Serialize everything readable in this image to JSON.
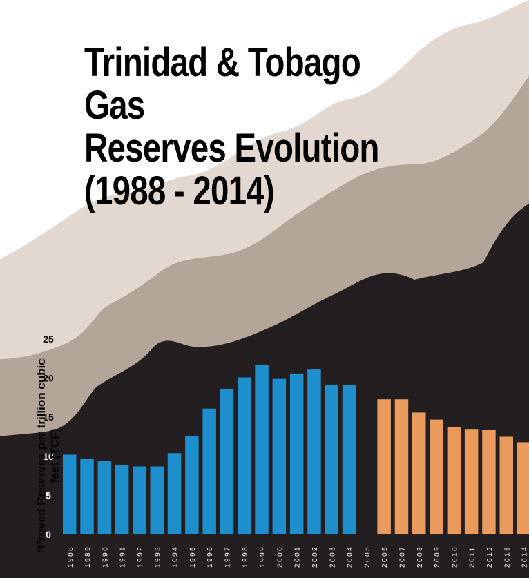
{
  "title_lines": [
    "Trinidad & Tobago Gas",
    "Reserves Evolution",
    "(1988 - 2014)"
  ],
  "colors": {
    "background": "#ffffff",
    "wave_light": "#e2d8d0",
    "wave_mid": "#b3a598",
    "wave_dark": "#231f20",
    "bar_blue": "#1e8fcc",
    "bar_orange": "#e89b5c",
    "text_dark": "#000000",
    "text_light": "#ffffff"
  },
  "chart_data": {
    "type": "bar",
    "title": "Trinidad & Tobago Gas Reserves Evolution (1988 - 2014)",
    "ylabel": "*Proved Reserves per trillion cubic feet (TCF)",
    "xlabel": "",
    "ylim": [
      0,
      25
    ],
    "yticks": [
      0,
      5,
      10,
      15,
      20,
      25
    ],
    "grid": false,
    "categories": [
      "1988",
      "1989",
      "1990",
      "1991",
      "1992",
      "1993",
      "1994",
      "1995",
      "1996",
      "1997",
      "1998",
      "1999",
      "2000",
      "2001",
      "2002",
      "2003",
      "2004",
      "2005",
      "2006",
      "2007",
      "2008",
      "2009",
      "2010",
      "2011",
      "2012",
      "2013",
      "2014"
    ],
    "values": [
      10.2,
      9.7,
      9.4,
      8.9,
      8.7,
      8.7,
      10.4,
      12.6,
      16.1,
      18.6,
      20.1,
      21.7,
      19.9,
      20.6,
      21.1,
      19.1,
      19.1,
      null,
      17.3,
      17.3,
      15.6,
      14.7,
      13.7,
      13.5,
      13.4,
      12.5,
      11.8
    ],
    "series_color_by_period": [
      {
        "from": "1988",
        "to": "2004",
        "color": "#1e8fcc"
      },
      {
        "from": "2006",
        "to": "2014",
        "color": "#e89b5c"
      }
    ]
  }
}
